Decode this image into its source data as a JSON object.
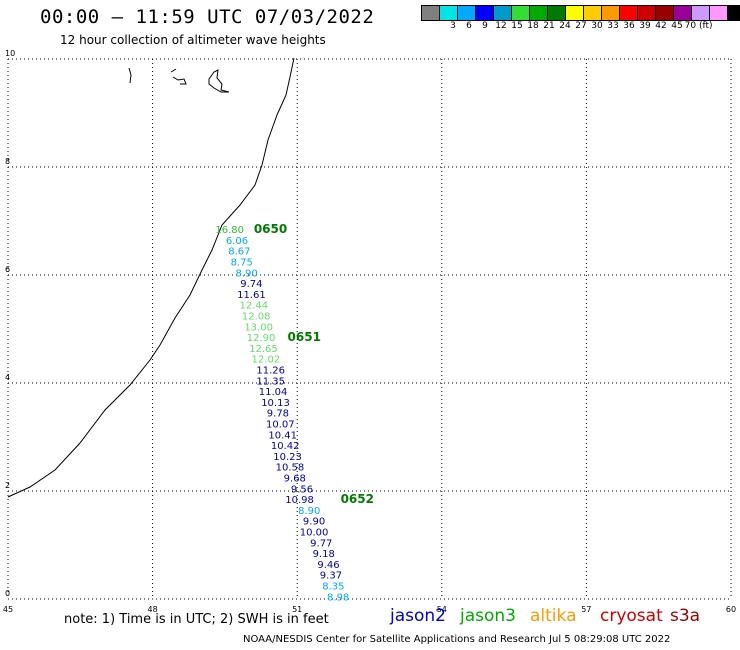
{
  "header": {
    "title": "00:00 – 11:59 UTC 07/03/2022",
    "subtitle": "12 hour collection of altimeter wave heights"
  },
  "color_scale": {
    "colors": [
      "#808080",
      "#00e5e5",
      "#00aaff",
      "#0000ff",
      "#0099cc",
      "#33dd33",
      "#00aa00",
      "#007a00",
      "#ffff00",
      "#ffcc00",
      "#ff9900",
      "#ff0000",
      "#cc0000",
      "#990000",
      "#990099",
      "#cc99ff",
      "#ff99ff",
      "#000000"
    ],
    "labels": [
      "3",
      "6",
      "9",
      "12",
      "15",
      "18",
      "21",
      "24",
      "27",
      "30",
      "33",
      "36",
      "39",
      "42",
      "45",
      "70 (ft)"
    ]
  },
  "axes": {
    "x_ticks": [
      "45",
      "48",
      "51",
      "54",
      "57",
      "60"
    ],
    "y_ticks": [
      "0",
      "2",
      "4",
      "6",
      "8",
      "10"
    ],
    "x_range": [
      45,
      60
    ],
    "y_range": [
      0,
      10
    ],
    "grid": "dotted"
  },
  "track": {
    "colors": {
      "jason2": "#0000aa",
      "jason3_light": "#66dd66",
      "cyan": "#00aaff",
      "jason3": "#33bb33"
    },
    "observations": [
      {
        "value": "16.80",
        "lon": 49.6,
        "lat": 6.85,
        "color": "#33bb33"
      },
      {
        "value": "6.06",
        "lon": 49.75,
        "lat": 6.65,
        "color": "#00aaff"
      },
      {
        "value": "8.67",
        "lon": 49.8,
        "lat": 6.45,
        "color": "#00aaff"
      },
      {
        "value": "8.75",
        "lon": 49.85,
        "lat": 6.25,
        "color": "#00aaff"
      },
      {
        "value": "8.90",
        "lon": 49.95,
        "lat": 6.05,
        "color": "#00aaff"
      },
      {
        "value": "9.74",
        "lon": 50.05,
        "lat": 5.85,
        "color": "#0000aa"
      },
      {
        "value": "11.61",
        "lon": 50.05,
        "lat": 5.65,
        "color": "#0000aa"
      },
      {
        "value": "12.44",
        "lon": 50.1,
        "lat": 5.45,
        "color": "#66dd66"
      },
      {
        "value": "12.08",
        "lon": 50.15,
        "lat": 5.25,
        "color": "#66dd66"
      },
      {
        "value": "13.00",
        "lon": 50.2,
        "lat": 5.05,
        "color": "#66dd66"
      },
      {
        "value": "12.90",
        "lon": 50.25,
        "lat": 4.85,
        "color": "#66dd66"
      },
      {
        "value": "12.65",
        "lon": 50.3,
        "lat": 4.65,
        "color": "#66dd66"
      },
      {
        "value": "12.02",
        "lon": 50.35,
        "lat": 4.45,
        "color": "#66dd66"
      },
      {
        "value": "11.26",
        "lon": 50.45,
        "lat": 4.25,
        "color": "#0000aa"
      },
      {
        "value": "11.35",
        "lon": 50.45,
        "lat": 4.05,
        "color": "#0000aa"
      },
      {
        "value": "11.04",
        "lon": 50.5,
        "lat": 3.85,
        "color": "#0000aa"
      },
      {
        "value": "10.13",
        "lon": 50.55,
        "lat": 3.65,
        "color": "#0000aa"
      },
      {
        "value": "9.78",
        "lon": 50.6,
        "lat": 3.45,
        "color": "#0000aa"
      },
      {
        "value": "10.07",
        "lon": 50.65,
        "lat": 3.25,
        "color": "#0000aa"
      },
      {
        "value": "10.41",
        "lon": 50.7,
        "lat": 3.05,
        "color": "#0000aa"
      },
      {
        "value": "10.42",
        "lon": 50.75,
        "lat": 2.85,
        "color": "#0000aa"
      },
      {
        "value": "10.23",
        "lon": 50.8,
        "lat": 2.65,
        "color": "#0000aa"
      },
      {
        "value": "10.58",
        "lon": 50.85,
        "lat": 2.45,
        "color": "#0000aa"
      },
      {
        "value": "9.68",
        "lon": 50.95,
        "lat": 2.25,
        "color": "#0000aa"
      },
      {
        "value": "9.56",
        "lon": 51.1,
        "lat": 2.05,
        "color": "#0000aa"
      },
      {
        "value": "10.98",
        "lon": 51.05,
        "lat": 1.85,
        "color": "#0000aa"
      },
      {
        "value": "8.90",
        "lon": 51.25,
        "lat": 1.65,
        "color": "#00aaff"
      },
      {
        "value": "9.90",
        "lon": 51.35,
        "lat": 1.45,
        "color": "#0000aa"
      },
      {
        "value": "10.00",
        "lon": 51.35,
        "lat": 1.25,
        "color": "#0000aa"
      },
      {
        "value": "9.77",
        "lon": 51.5,
        "lat": 1.05,
        "color": "#0000aa"
      },
      {
        "value": "9.18",
        "lon": 51.55,
        "lat": 0.85,
        "color": "#0000aa"
      },
      {
        "value": "9.46",
        "lon": 51.65,
        "lat": 0.65,
        "color": "#0000aa"
      },
      {
        "value": "9.37",
        "lon": 51.7,
        "lat": 0.45,
        "color": "#0000aa"
      },
      {
        "value": "8.35",
        "lon": 51.75,
        "lat": 0.25,
        "color": "#00aaff"
      },
      {
        "value": "8.98",
        "lon": 51.85,
        "lat": 0.05,
        "color": "#00aaff"
      }
    ],
    "time_labels": [
      {
        "text": "0650",
        "lon": 50.1,
        "lat": 6.85
      },
      {
        "text": "0651",
        "lon": 50.8,
        "lat": 4.85
      },
      {
        "text": "0652",
        "lon": 51.9,
        "lat": 1.85
      }
    ]
  },
  "footer": {
    "note": "note:  1) Time is in UTC;  2) SWH is in feet",
    "satellites": [
      {
        "name": "jason2",
        "color": "#0000cc"
      },
      {
        "name": "jason3",
        "color": "#00aa00"
      },
      {
        "name": "altika",
        "color": "#ff9900"
      },
      {
        "name": "cryosat",
        "color": "#cc0000"
      },
      {
        "name": "s3a",
        "color": "#990000"
      }
    ],
    "credit": "NOAA/NESDIS Center for Satellite Applications and Research    Jul  5 08:29:08 UTC 2022"
  }
}
